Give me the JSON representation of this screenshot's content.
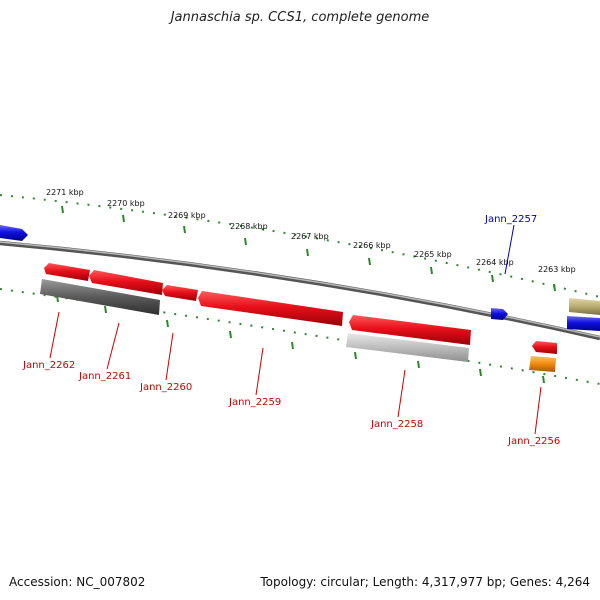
{
  "title": "Jannaschia sp. CCS1, complete genome",
  "footer": {
    "accession": "Accession: NC_007802",
    "stats": "Topology: circular; Length: 4,317,977 bp; Genes: 4,264"
  },
  "colors": {
    "backbone": "#8a8a8a",
    "tick": "#2a8a2a",
    "gene_red": "#e8101a",
    "gene_blue": "#1010e0",
    "gene_dark_gray": "#5a5a5a",
    "gene_light_gray": "#c0c0c0",
    "gene_orange": "#f08a10",
    "gene_khaki": "#b8ac70",
    "label_red": "#cc0000",
    "label_blue": "#0000bb"
  },
  "kbp_labels": [
    "2271 kbp",
    "2270 kbp",
    "2269 kbp",
    "2268 kbp",
    "2267 kbp",
    "2266 kbp",
    "2265 kbp",
    "2264 kbp",
    "2263 kbp"
  ],
  "genes": [
    {
      "name": "Jann_2262",
      "color": "gene_red",
      "label_color": "label_red"
    },
    {
      "name": "Jann_2261",
      "color": "gene_red",
      "label_color": "label_red"
    },
    {
      "name": "Jann_2260",
      "color": "gene_red",
      "label_color": "label_red"
    },
    {
      "name": "Jann_2259",
      "color": "gene_red",
      "label_color": "label_red"
    },
    {
      "name": "Jann_2258",
      "color": "gene_red",
      "label_color": "label_red"
    },
    {
      "name": "Jann_2257",
      "color": "gene_blue",
      "label_color": "label_blue"
    },
    {
      "name": "Jann_2256",
      "color": "gene_red",
      "label_color": "label_red"
    }
  ]
}
